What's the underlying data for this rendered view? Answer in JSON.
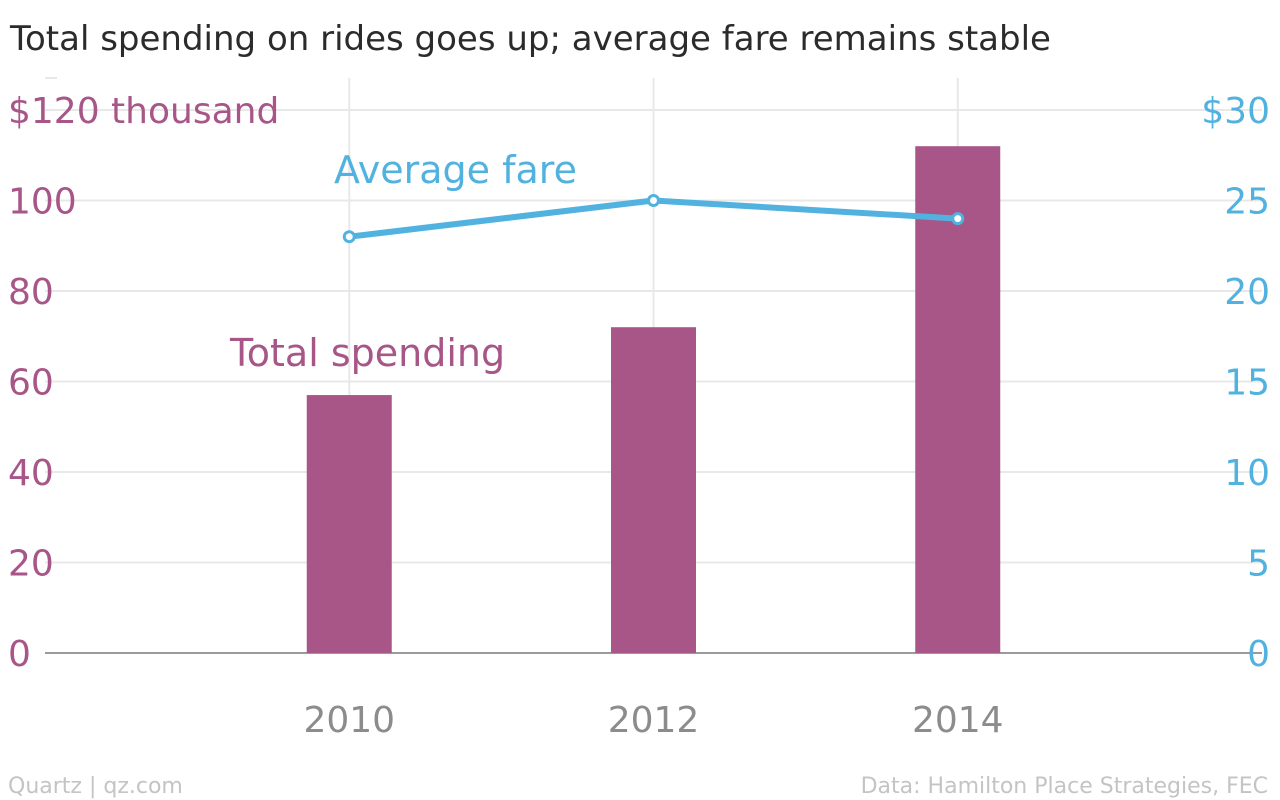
{
  "title": "Total spending on rides goes up; average fare remains stable",
  "footer": {
    "credit": "Quartz | qz.com",
    "source": "Data: Hamilton Place Strategies, FEC"
  },
  "colors": {
    "spending": "#a85587",
    "fare": "#51b2e0",
    "grid": "#e8e8e8",
    "baseline": "#9a9a9a",
    "xtick": "#8c8c8c"
  },
  "chart_data": {
    "type": "bar+line",
    "title": "Total spending on rides goes up; average fare remains stable",
    "categories": [
      "2010",
      "2012",
      "2014"
    ],
    "series": [
      {
        "name": "Total spending",
        "type": "bar",
        "axis": "left",
        "values": [
          57,
          72,
          112
        ]
      },
      {
        "name": "Average fare",
        "type": "line",
        "axis": "right",
        "values": [
          23,
          25,
          24
        ]
      }
    ],
    "left_axis": {
      "ylim": [
        0,
        120
      ],
      "ticks": [
        0,
        20,
        40,
        60,
        80,
        100,
        120
      ],
      "tick_labels": [
        "0",
        "20",
        "40",
        "60",
        "80",
        "100",
        "$120 thousand"
      ]
    },
    "right_axis": {
      "ylim": [
        0,
        30
      ],
      "ticks": [
        0,
        5,
        10,
        15,
        20,
        25,
        30
      ],
      "tick_labels": [
        "0",
        "5",
        "10",
        "15",
        "20",
        "25",
        "$30"
      ]
    },
    "xlim": [
      2008,
      2016
    ],
    "x_gridlines": [
      2010,
      2012,
      2014
    ],
    "grid": true,
    "legend": "inline labels"
  }
}
